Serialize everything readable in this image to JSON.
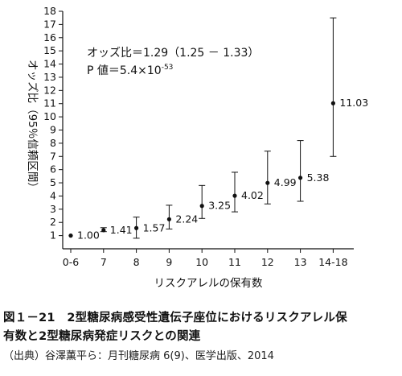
{
  "chart_data": {
    "type": "scatter",
    "categories": [
      "0-6",
      "7",
      "8",
      "9",
      "10",
      "11",
      "12",
      "13",
      "14-18"
    ],
    "series": [
      {
        "values": [
          1.0,
          1.41,
          1.57,
          2.24,
          3.25,
          4.02,
          4.99,
          5.38,
          11.03
        ],
        "value_labels": [
          "1.00",
          "1.41",
          "1.57",
          "2.24",
          "3.25",
          "4.02",
          "4.99",
          "5.38",
          "11.03"
        ],
        "ci_lower": [
          1.0,
          1.3,
          0.8,
          1.5,
          2.3,
          2.8,
          3.4,
          3.6,
          7.0
        ],
        "ci_upper": [
          1.0,
          1.6,
          2.4,
          3.3,
          4.8,
          5.8,
          7.4,
          8.2,
          17.5
        ]
      }
    ],
    "xlabel": "リスクアレルの保有数",
    "ylabel": "オッズ比（95％信頼区間）",
    "ylim": [
      0,
      18
    ],
    "yticks": [
      1,
      2,
      3,
      4,
      5,
      6,
      7,
      8,
      9,
      10,
      11,
      12,
      13,
      14,
      15,
      16,
      17,
      18
    ],
    "grid": false,
    "annotations": {
      "odds_ratio": "オッズ比＝1.29（1.25 － 1.33）",
      "p_value_prefix": "P 値＝5.4×10",
      "p_value_exponent": "-53"
    }
  },
  "caption": {
    "line1": "図１－21　2型糖尿病感受性遺伝子座位におけるリスクアレル保",
    "line2": "有数と2型糖尿病発症リスクとの関連",
    "source": "（出典）谷澤薫平ら：月刊糖尿病 6(9)、医学出版、2014"
  }
}
